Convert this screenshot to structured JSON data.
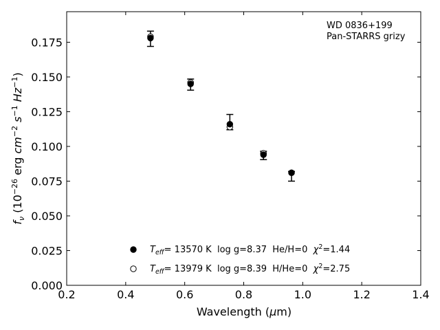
{
  "chart_data": {
    "type": "scatter",
    "annotation_lines": [
      "WD 0836+199",
      "Pan-STARRS grizy"
    ],
    "xlabel": "Wavelength (μm)",
    "ylabel": "fν (10⁻²⁶ erg cm⁻² s⁻¹ Hz⁻¹)",
    "xlim": [
      0.2,
      1.4
    ],
    "ylim": [
      0.0,
      0.197
    ],
    "x_ticks": [
      0.2,
      0.4,
      0.6,
      0.8,
      1.0,
      1.2,
      1.4
    ],
    "x_tick_labels": [
      "0.2",
      "0.4",
      "0.6",
      "0.8",
      "1.0",
      "1.2",
      "1.4"
    ],
    "y_ticks": [
      0.0,
      0.025,
      0.05,
      0.075,
      0.1,
      0.125,
      0.15,
      0.175
    ],
    "y_tick_labels": [
      "0.000",
      "0.025",
      "0.050",
      "0.075",
      "0.100",
      "0.125",
      "0.150",
      "0.175"
    ],
    "grid": false,
    "legend_position": "lower-center",
    "observed": {
      "x": [
        0.484,
        0.62,
        0.753,
        0.867,
        0.962
      ],
      "y": [
        0.1775,
        0.1445,
        0.1175,
        0.0935,
        0.0785
      ],
      "err": [
        0.0055,
        0.004,
        0.0055,
        0.003,
        0.0035
      ]
    },
    "series": [
      {
        "name": "T_eff= 13570 K  log g=8.37  He/H=0  χ²=1.44",
        "marker": "filled-circle",
        "x": [
          0.484,
          0.62,
          0.753,
          0.867,
          0.962
        ],
        "y": [
          0.178,
          0.145,
          0.116,
          0.094,
          0.081
        ]
      },
      {
        "name": "T_eff= 13979 K  log g=8.39  H/He=0  χ²=2.75",
        "marker": "open-circle",
        "x": [
          0.484,
          0.62,
          0.753,
          0.867,
          0.962
        ],
        "y": [
          0.179,
          0.146,
          0.114,
          0.095,
          0.081
        ]
      }
    ]
  },
  "legend": {
    "entries": [
      {
        "marker": "filled-circle",
        "teff_symbol": "T",
        "teff_sub": "eff",
        "teff_rest": "= 13570 K  log g=8.37  He/H=0  ",
        "chi_symbol": "χ",
        "chi_sup": "2",
        "chi_value": "=1.44"
      },
      {
        "marker": "open-circle",
        "teff_symbol": "T",
        "teff_sub": "eff",
        "teff_rest": "= 13979 K  log g=8.39  H/He=0  ",
        "chi_symbol": "χ",
        "chi_sup": "2",
        "chi_value": "=2.75"
      }
    ]
  },
  "axis_text": {
    "xlabel_main": "Wavelength (",
    "xlabel_mu": "μ",
    "xlabel_tail": "m)",
    "ylabel_f": "f",
    "ylabel_nu": "ν",
    "ylabel_open": " (10",
    "ylabel_exp1": "−26",
    "ylabel_erg": " erg ",
    "ylabel_cm": "cm",
    "ylabel_exp2": "−2",
    "ylabel_s": " s",
    "ylabel_exp3": "−1",
    "ylabel_hz": " Hz",
    "ylabel_exp4": "−1",
    "ylabel_close": ")"
  }
}
